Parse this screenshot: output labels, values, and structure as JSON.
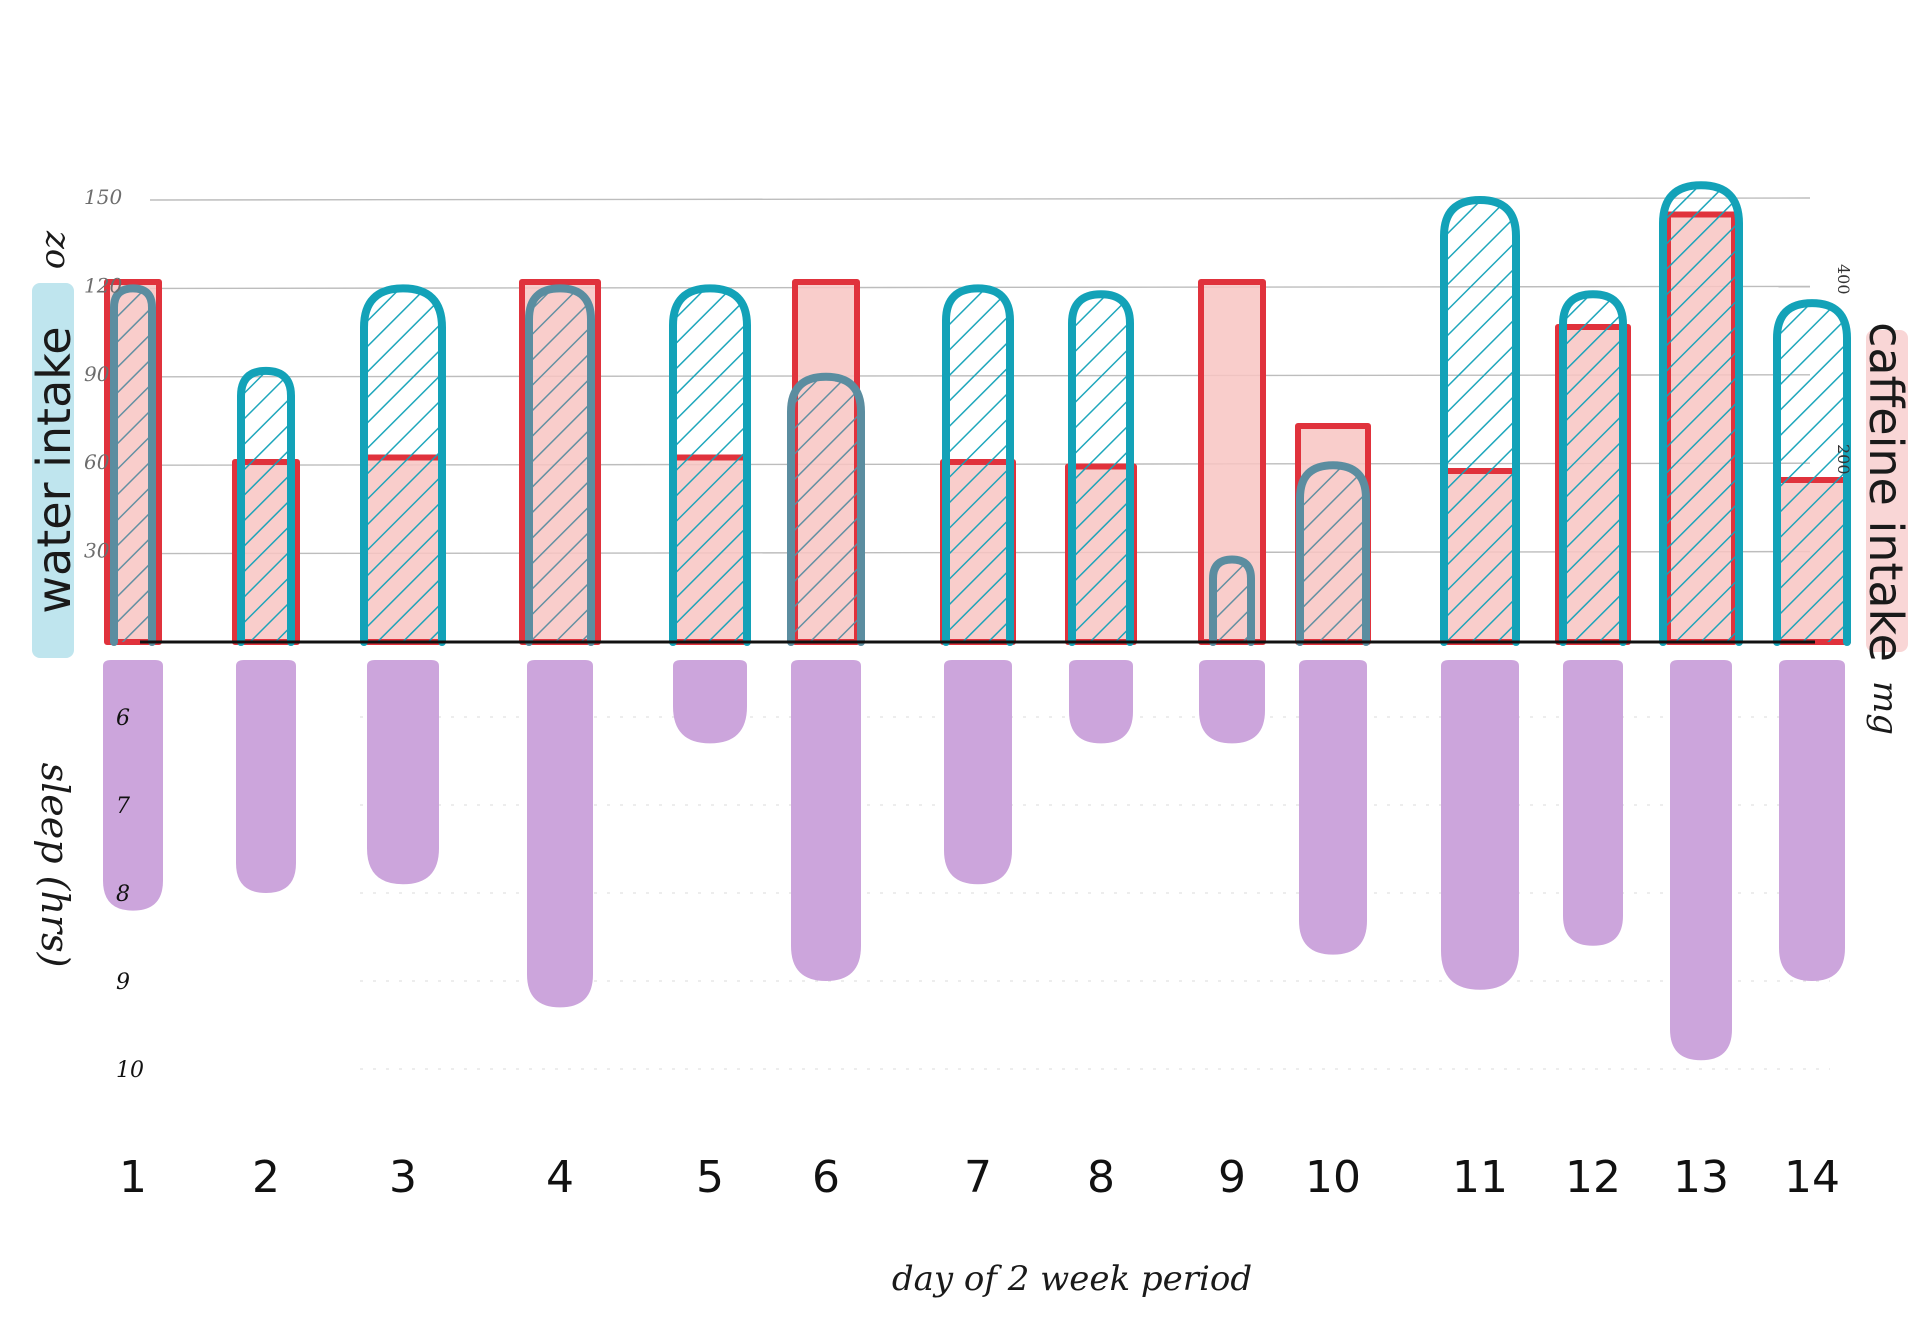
{
  "chart_data": {
    "type": "bar",
    "xlabel": "day of 2 week period",
    "categories": [
      "1",
      "2",
      "3",
      "4",
      "5",
      "6",
      "7",
      "8",
      "9",
      "10",
      "11",
      "12",
      "13",
      "14"
    ],
    "panels": [
      {
        "name": "intake",
        "ylabel": "water intake",
        "ylabel_unit": "oz",
        "ylim": [
          0,
          150
        ],
        "yticks": [
          30,
          60,
          90,
          120,
          150
        ],
        "y2label": "caffeine intake",
        "y2label_unit": "mg",
        "y2lim": [
          0,
          500
        ],
        "y2ticks": [
          200,
          400
        ],
        "grid": true,
        "series": [
          {
            "axis": "y",
            "values": [
              120,
              92,
              120,
              120,
              120,
              90,
              120,
              118,
              28,
              60,
              150,
              118,
              155,
              115
            ]
          },
          {
            "axis": "y2",
            "values": [
              400,
              200,
              205,
              400,
              205,
              400,
              200,
              195,
              400,
              240,
              190,
              350,
              475,
              180
            ]
          }
        ]
      },
      {
        "name": "sleep",
        "ylabel": "sleep (hrs)",
        "ylim": [
          5.5,
          10
        ],
        "yticks": [
          6,
          7,
          8,
          9,
          10
        ],
        "inverted": true,
        "series": [
          {
            "values": [
              8.2,
              8.0,
              7.9,
              9.3,
              6.3,
              9.0,
              7.9,
              6.3,
              6.3,
              8.7,
              9.1,
              8.6,
              9.9,
              9.0
            ]
          }
        ]
      }
    ]
  },
  "colors": {
    "water": "#13a2b8",
    "water_dark": "#5b8da0",
    "caffeine": "#e0323c",
    "caffeine_fill": "#f8c4c2",
    "sleep": "#cca5dc",
    "grid": "#bdbdbd",
    "water_label_bg": "#bfe5ee",
    "caffeine_label_bg": "#f9d6d6"
  }
}
